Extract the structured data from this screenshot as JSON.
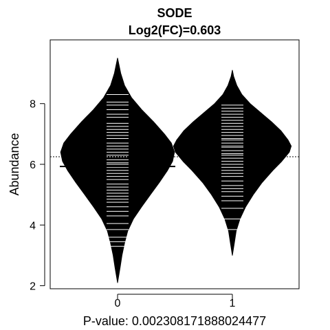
{
  "chart_data": {
    "type": "beanplot",
    "title": "SODE",
    "subtitle": "Log2(FC)=0.603",
    "xlabel": "P-value: 0.00230817188802447​7",
    "ylabel": "Abundance",
    "categories": [
      "0",
      "1"
    ],
    "ylim": [
      1.9,
      10.1
    ],
    "yticks": [
      2,
      4,
      6,
      8
    ],
    "overall_mean": 6.25,
    "colors": {
      "bean": "#000000",
      "line": "#ffffff",
      "axis": "#000000"
    },
    "groups": [
      {
        "category": "0",
        "mean": 5.93,
        "range": [
          2.1,
          9.5
        ],
        "density": [
          [
            2.1,
            0.0
          ],
          [
            2.6,
            0.04
          ],
          [
            3.0,
            0.07
          ],
          [
            3.4,
            0.11
          ],
          [
            3.8,
            0.16
          ],
          [
            4.2,
            0.25
          ],
          [
            4.6,
            0.38
          ],
          [
            5.0,
            0.52
          ],
          [
            5.4,
            0.66
          ],
          [
            5.8,
            0.79
          ],
          [
            6.1,
            0.87
          ],
          [
            6.4,
            0.9
          ],
          [
            6.7,
            0.85
          ],
          [
            7.0,
            0.74
          ],
          [
            7.4,
            0.57
          ],
          [
            7.8,
            0.38
          ],
          [
            8.2,
            0.22
          ],
          [
            8.6,
            0.11
          ],
          [
            9.0,
            0.05
          ],
          [
            9.5,
            0.0
          ]
        ],
        "observations": [
          3.3,
          3.45,
          3.6,
          3.85,
          4.05,
          4.3,
          4.45,
          4.6,
          4.75,
          4.85,
          4.95,
          5.05,
          5.15,
          5.25,
          5.35,
          5.5,
          5.6,
          5.7,
          5.8,
          5.9,
          6.0,
          6.05,
          6.15,
          6.25,
          6.3,
          6.4,
          6.5,
          6.6,
          6.7,
          6.85,
          6.95,
          7.05,
          7.15,
          7.25,
          7.35,
          7.55,
          7.65,
          7.8,
          7.95,
          8.05,
          8.3
        ]
      },
      {
        "category": "1",
        "mean": 6.52,
        "range": [
          3.0,
          9.1
        ],
        "density": [
          [
            3.0,
            0.0
          ],
          [
            3.4,
            0.03
          ],
          [
            3.8,
            0.06
          ],
          [
            4.2,
            0.12
          ],
          [
            4.6,
            0.21
          ],
          [
            5.0,
            0.33
          ],
          [
            5.4,
            0.47
          ],
          [
            5.8,
            0.64
          ],
          [
            6.1,
            0.78
          ],
          [
            6.4,
            0.9
          ],
          [
            6.6,
            0.93
          ],
          [
            6.8,
            0.88
          ],
          [
            7.1,
            0.77
          ],
          [
            7.4,
            0.62
          ],
          [
            7.7,
            0.45
          ],
          [
            8.0,
            0.28
          ],
          [
            8.3,
            0.15
          ],
          [
            8.6,
            0.07
          ],
          [
            8.9,
            0.02
          ],
          [
            9.1,
            0.0
          ]
        ],
        "observations": [
          3.85,
          4.2,
          4.55,
          4.8,
          4.95,
          5.1,
          5.2,
          5.3,
          5.45,
          5.6,
          5.7,
          5.8,
          5.9,
          6.0,
          6.1,
          6.2,
          6.3,
          6.35,
          6.45,
          6.55,
          6.6,
          6.7,
          6.8,
          6.85,
          6.95,
          7.05,
          7.15,
          7.25,
          7.35,
          7.45,
          7.55,
          7.65,
          7.75,
          7.85,
          7.95
        ]
      }
    ]
  }
}
